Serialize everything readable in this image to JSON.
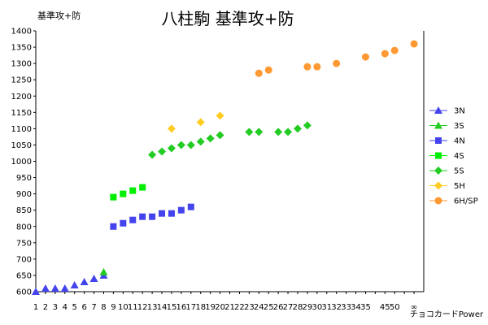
{
  "chart_data": {
    "type": "scatter",
    "title": "八柱駒 基準攻+防",
    "ylabel": "基準攻+防",
    "xlabel": "チョコカードPower",
    "ylim": [
      600,
      1400
    ],
    "y_step": 50,
    "x_ticks": [
      "1",
      "2",
      "3",
      "4",
      "5",
      "6",
      "7",
      "8",
      "9",
      "10",
      "11",
      "12",
      "13",
      "14",
      "15",
      "16",
      "17",
      "18",
      "19",
      "20",
      "21",
      "22",
      "23",
      "24",
      "25",
      "26",
      "27",
      "28",
      "29",
      "30",
      "31",
      "32",
      "33",
      "34",
      "35",
      "",
      "45",
      "50",
      "",
      "∞"
    ],
    "grid": false,
    "legend_position": "right",
    "series": [
      {
        "name": "3N",
        "marker": "triangle",
        "color": "#4444ee",
        "points": [
          [
            1,
            600
          ],
          [
            2,
            610
          ],
          [
            3,
            610
          ],
          [
            4,
            610
          ],
          [
            5,
            620
          ],
          [
            6,
            630
          ],
          [
            7,
            640
          ],
          [
            8,
            650
          ]
        ]
      },
      {
        "name": "3S",
        "marker": "triangle",
        "color": "#22cc22",
        "points": [
          [
            8,
            660
          ]
        ]
      },
      {
        "name": "4N",
        "marker": "square",
        "color": "#4444ee",
        "points": [
          [
            9,
            800
          ],
          [
            10,
            810
          ],
          [
            11,
            820
          ],
          [
            12,
            830
          ],
          [
            13,
            830
          ],
          [
            14,
            840
          ],
          [
            15,
            840
          ],
          [
            16,
            850
          ],
          [
            17,
            860
          ]
        ]
      },
      {
        "name": "4S",
        "marker": "square",
        "color": "#00ee00",
        "points": [
          [
            9,
            890
          ],
          [
            10,
            900
          ],
          [
            11,
            910
          ],
          [
            12,
            920
          ]
        ]
      },
      {
        "name": "5S",
        "marker": "diamond",
        "color": "#22cc22",
        "points": [
          [
            13,
            1020
          ],
          [
            14,
            1030
          ],
          [
            15,
            1040
          ],
          [
            16,
            1050
          ],
          [
            17,
            1050
          ],
          [
            18,
            1060
          ],
          [
            19,
            1070
          ],
          [
            20,
            1080
          ],
          [
            23,
            1090
          ],
          [
            24,
            1090
          ],
          [
            26,
            1090
          ],
          [
            27,
            1090
          ],
          [
            28,
            1100
          ],
          [
            29,
            1110
          ]
        ]
      },
      {
        "name": "5H",
        "marker": "diamond",
        "color": "#ffcc22",
        "points": [
          [
            15,
            1100
          ],
          [
            18,
            1120
          ],
          [
            20,
            1140
          ]
        ]
      },
      {
        "name": "6H/SP",
        "marker": "circle",
        "color": "#ff9933",
        "points": [
          [
            24,
            1270
          ],
          [
            25,
            1280
          ],
          [
            29,
            1290
          ],
          [
            30,
            1290
          ],
          [
            32,
            1300
          ],
          [
            35,
            1320
          ],
          [
            45,
            1330
          ],
          [
            50,
            1340
          ],
          [
            "∞",
            1360
          ]
        ]
      }
    ]
  }
}
